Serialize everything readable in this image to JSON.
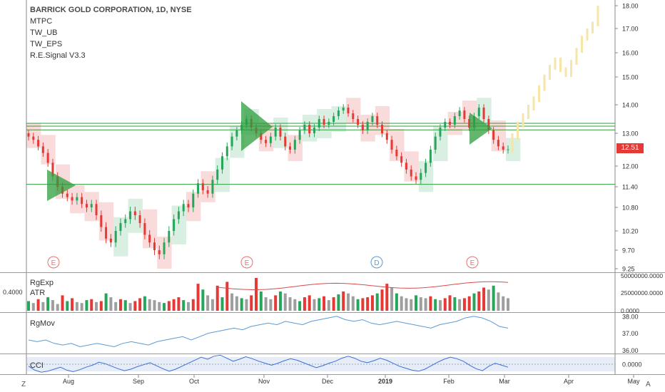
{
  "header": {
    "title": "BARRICK GOLD CORPORATION, 1D, NYSE",
    "indicators": [
      "MTPC",
      "TW_UB",
      "TW_EPS",
      "R.E.Signal V3.3"
    ]
  },
  "last_price_badge": "12.51",
  "panels": {
    "volume_labels": [
      "RgExp",
      "ATR"
    ],
    "volume_left_value": "0.4000",
    "rgmov_label": "RgMov",
    "cci_label": "CCI"
  },
  "corners": {
    "bottom_left": "Z",
    "bottom_right": "A"
  },
  "colors": {
    "up": "#26a65b",
    "down": "#e53935",
    "projection": "#f5e6a8",
    "level": "#2e9e3e",
    "atr": "#d94b4b",
    "rgmov": "#5b9bd5",
    "cci": "#3a6fd8",
    "grid": "#e6e6e6"
  },
  "chart_data": [
    {
      "type": "candlestick",
      "title": "BARRICK GOLD CORPORATION, 1D, NYSE",
      "x_ticks": [
        "Aug",
        "Sep",
        "Oct",
        "Nov",
        "Dec",
        "2019",
        "Feb",
        "Mar",
        "Apr",
        "May"
      ],
      "y_ticks": [
        "18.00",
        "17.00",
        "16.00",
        "15.00",
        "14.00",
        "13.00",
        "12.00",
        "11.40",
        "10.80",
        "10.20",
        "9.70",
        "9.25"
      ],
      "ylim": [
        9.1,
        18.2
      ],
      "horizontal_levels": [
        13.35,
        13.25,
        13.12,
        11.47
      ],
      "event_markers": [
        {
          "label": "E",
          "date": "Jul-27"
        },
        {
          "label": "E",
          "date": "Oct-24"
        },
        {
          "label": "D",
          "date": "Nov-29"
        },
        {
          "label": "E",
          "date": "Feb-13"
        }
      ],
      "closes": [
        12.9,
        12.8,
        12.6,
        12.4,
        12.1,
        11.7,
        11.4,
        11.2,
        11.1,
        11.0,
        11.1,
        10.9,
        10.8,
        10.9,
        10.6,
        10.3,
        10.0,
        9.9,
        10.2,
        10.4,
        10.5,
        10.7,
        10.6,
        10.4,
        10.1,
        9.9,
        9.7,
        9.6,
        9.9,
        10.2,
        10.5,
        10.7,
        10.9,
        10.8,
        11.2,
        11.5,
        11.3,
        11.2,
        11.6,
        11.9,
        12.3,
        12.6,
        12.9,
        13.1,
        13.3,
        13.5,
        13.2,
        13.0,
        12.8,
        12.7,
        12.9,
        13.2,
        12.9,
        12.6,
        12.5,
        12.8,
        13.1,
        13.3,
        13.0,
        13.2,
        13.5,
        13.3,
        13.4,
        13.6,
        13.8,
        13.9,
        13.7,
        13.5,
        13.3,
        13.1,
        13.4,
        13.6,
        13.3,
        13.0,
        12.8,
        12.5,
        12.3,
        12.1,
        11.9,
        11.7,
        11.6,
        11.8,
        12.1,
        12.5,
        12.9,
        13.2,
        13.4,
        13.3,
        13.6,
        13.8,
        13.5,
        13.2,
        13.6,
        13.9,
        13.5,
        13.1,
        12.8,
        12.6,
        12.5,
        12.51
      ],
      "projection_closes": [
        12.9,
        13.3,
        13.6,
        13.9,
        14.2,
        14.6,
        15.0,
        15.4,
        15.7,
        15.3,
        15.1,
        15.6,
        16.1,
        16.6,
        16.9,
        17.2,
        17.9
      ]
    },
    {
      "type": "bar",
      "name": "Volume / RgExp / ATR",
      "y_ticks": [
        "50000000.0000",
        "25000000.0000",
        "0.0000"
      ],
      "ylim": [
        0,
        50000000
      ],
      "values": [
        10,
        8,
        12,
        9,
        14,
        11,
        7,
        16,
        10,
        13,
        9,
        8,
        11,
        12,
        9,
        10,
        18,
        14,
        9,
        12,
        11,
        8,
        10,
        13,
        15,
        12,
        11,
        9,
        8,
        10,
        12,
        14,
        11,
        9,
        12,
        28,
        22,
        16,
        12,
        26,
        14,
        30,
        18,
        15,
        13,
        12,
        16,
        34,
        20,
        14,
        12,
        16,
        20,
        18,
        14,
        12,
        10,
        14,
        16,
        12,
        13,
        15,
        11,
        14,
        17,
        20,
        18,
        15,
        12,
        13,
        14,
        16,
        18,
        22,
        28,
        24,
        18,
        15,
        13,
        12,
        16,
        14,
        13,
        15,
        12,
        11,
        13,
        16,
        14,
        12,
        13,
        15,
        18,
        20,
        24,
        22,
        26,
        19,
        15,
        13
      ]
    },
    {
      "type": "line",
      "name": "RgMov",
      "y_ticks": [
        "38.00",
        "37.00",
        "36.00"
      ],
      "ylim": [
        35.8,
        38.2
      ],
      "values": [
        36.6,
        36.5,
        36.6,
        36.4,
        36.3,
        36.4,
        36.2,
        36.3,
        36.4,
        36.3,
        36.2,
        36.4,
        36.5,
        36.4,
        36.3,
        36.5,
        36.6,
        36.7,
        36.8,
        36.6,
        36.8,
        37.0,
        37.1,
        37.2,
        37.3,
        37.2,
        37.4,
        37.5,
        37.6,
        37.5,
        37.7,
        37.6,
        37.5,
        37.7,
        37.8,
        37.9,
        38.0,
        37.8,
        37.7,
        37.8,
        37.6,
        37.5,
        37.6,
        37.7,
        37.6,
        37.5,
        37.4,
        37.3,
        37.5,
        37.6,
        37.7,
        37.9,
        38.0,
        37.9,
        37.7,
        37.4,
        37.3
      ]
    },
    {
      "type": "line",
      "name": "CCI",
      "y_ticks": [
        "0.0000"
      ],
      "ylim": [
        -200,
        200
      ],
      "values": [
        -40,
        -120,
        -160,
        -140,
        -100,
        -60,
        -120,
        -150,
        -110,
        -60,
        -20,
        40,
        10,
        -40,
        -90,
        -130,
        -100,
        -50,
        -10,
        30,
        -30,
        -90,
        -140,
        -100,
        -40,
        20,
        80,
        140,
        100,
        160,
        180,
        120,
        60,
        100,
        150,
        110,
        60,
        20,
        -20,
        20,
        70,
        110,
        80,
        30,
        -20,
        -70,
        -30,
        20,
        60,
        120,
        160,
        120,
        60,
        30,
        70,
        120,
        80,
        20,
        -40,
        -80,
        -120,
        -140,
        -100,
        -30,
        40,
        100,
        140,
        110,
        60,
        -20,
        -90,
        -130,
        -40,
        20,
        -20,
        -60
      ]
    }
  ]
}
